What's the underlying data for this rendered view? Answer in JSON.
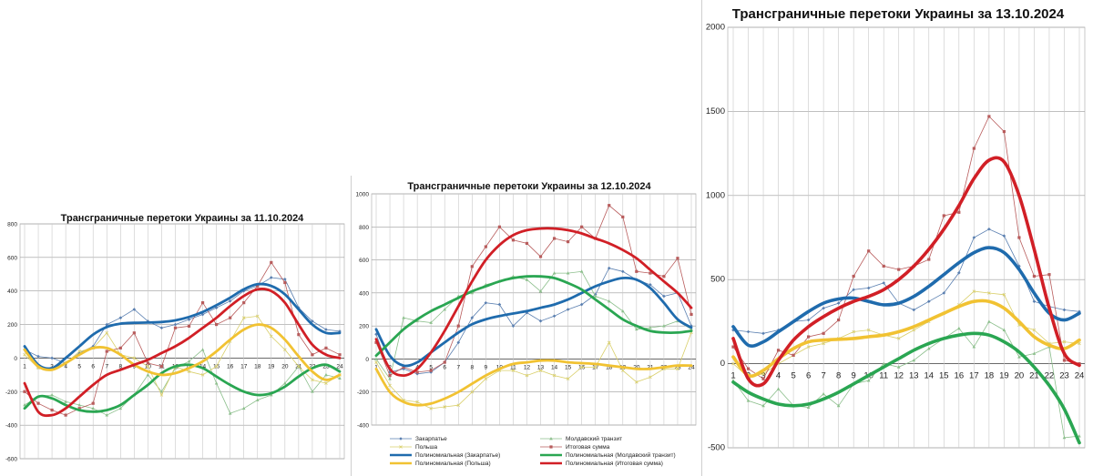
{
  "chart_data": [
    {
      "type": "line",
      "title": "Трансграничные перетоки Украины за 11.10.2024",
      "categories": [
        "1",
        "2",
        "3",
        "4",
        "5",
        "6",
        "7",
        "8",
        "9",
        "10",
        "11",
        "12",
        "13",
        "14",
        "15",
        "16",
        "17",
        "18",
        "19",
        "20",
        "21",
        "22",
        "23",
        "24"
      ],
      "ylim": [
        -600,
        800
      ],
      "yticks": [
        "800",
        "600",
        "400",
        "200",
        "0",
        "-200",
        "-400",
        "-600"
      ],
      "grid": true,
      "series": [
        {
          "color": "#5a7fb0",
          "values": [
            50,
            10,
            0,
            -30,
            30,
            70,
            200,
            240,
            290,
            220,
            180,
            200,
            230,
            260,
            300,
            340,
            400,
            430,
            480,
            470,
            300,
            220,
            170,
            160
          ]
        },
        {
          "color": "#8cbf8c",
          "values": [
            -280,
            -230,
            -220,
            -260,
            -280,
            -300,
            -340,
            -300,
            -220,
            -100,
            -200,
            -60,
            -20,
            50,
            -150,
            -330,
            -300,
            -250,
            -220,
            -150,
            -50,
            -200,
            -100,
            -120
          ]
        },
        {
          "color": "#d9cf6a",
          "values": [
            20,
            -60,
            -60,
            -30,
            40,
            60,
            150,
            20,
            0,
            -50,
            -220,
            -50,
            -80,
            -100,
            -50,
            100,
            240,
            250,
            130,
            50,
            -50,
            -130,
            -150,
            -100
          ]
        },
        {
          "color": "#b85c5c",
          "values": [
            -200,
            -270,
            -310,
            -340,
            -300,
            -270,
            40,
            60,
            150,
            -30,
            -50,
            180,
            190,
            330,
            200,
            240,
            330,
            430,
            570,
            450,
            140,
            20,
            60,
            20
          ]
        },
        {
          "color": "#1f6bad",
          "trend": true,
          "values": [
            70,
            -40,
            -60,
            0,
            70,
            140,
            185,
            205,
            210,
            212,
            215,
            225,
            245,
            275,
            315,
            360,
            410,
            440,
            430,
            380,
            290,
            200,
            150,
            150
          ]
        },
        {
          "color": "#2aa652",
          "trend": true,
          "values": [
            -300,
            -230,
            -240,
            -280,
            -310,
            -320,
            -310,
            -280,
            -220,
            -160,
            -90,
            -50,
            -40,
            -60,
            -110,
            -160,
            -200,
            -220,
            -210,
            -170,
            -110,
            -60,
            -40,
            -80
          ]
        },
        {
          "color": "#f1c232",
          "trend": true,
          "values": [
            50,
            -50,
            -70,
            -30,
            20,
            60,
            60,
            20,
            -40,
            -80,
            -100,
            -90,
            -60,
            -20,
            40,
            110,
            170,
            200,
            180,
            110,
            10,
            -80,
            -130,
            -100
          ]
        },
        {
          "color": "#d11f26",
          "trend": true,
          "values": [
            -150,
            -320,
            -340,
            -300,
            -230,
            -160,
            -100,
            -70,
            -40,
            -10,
            30,
            70,
            120,
            180,
            240,
            310,
            370,
            410,
            400,
            330,
            200,
            80,
            20,
            0
          ]
        }
      ]
    },
    {
      "type": "line",
      "title": "Трансграничные перетоки Украины за 12.10.2024",
      "categories": [
        "1",
        "2",
        "3",
        "4",
        "5",
        "6",
        "7",
        "8",
        "9",
        "10",
        "11",
        "12",
        "13",
        "14",
        "15",
        "16",
        "17",
        "18",
        "19",
        "20",
        "21",
        "22",
        "23",
        "24"
      ],
      "ylim": [
        -400,
        1000
      ],
      "yticks": [
        "1000",
        "800",
        "600",
        "400",
        "200",
        "0",
        "-200",
        "-400"
      ],
      "grid": true,
      "legend_position": "bottom",
      "series": [
        {
          "name": "Закарпатье",
          "color": "#5a7fb0",
          "values": [
            150,
            -80,
            -60,
            -90,
            -80,
            -20,
            100,
            250,
            340,
            330,
            200,
            280,
            230,
            260,
            300,
            330,
            390,
            550,
            530,
            480,
            450,
            380,
            400,
            200
          ]
        },
        {
          "name": "Молдавский транзит",
          "color": "#8cbf8c",
          "values": [
            0,
            -120,
            250,
            230,
            220,
            300,
            380,
            400,
            450,
            470,
            500,
            480,
            410,
            520,
            520,
            530,
            380,
            350,
            290,
            180,
            190,
            200,
            230,
            180
          ]
        },
        {
          "name": "Польша",
          "color": "#d9cf6a",
          "values": [
            -20,
            -160,
            -250,
            -260,
            -300,
            -290,
            -280,
            -200,
            -120,
            -70,
            -70,
            -100,
            -70,
            -100,
            -120,
            -50,
            -50,
            100,
            -70,
            -140,
            -110,
            -60,
            -60,
            160
          ]
        },
        {
          "name": "Итоговая сумма",
          "color": "#b85c5c",
          "values": [
            100,
            -100,
            -50,
            -80,
            -70,
            -20,
            200,
            560,
            680,
            800,
            720,
            700,
            620,
            730,
            710,
            800,
            730,
            930,
            860,
            530,
            520,
            500,
            610,
            270
          ]
        },
        {
          "name": "Полиномиальная (Закарпатье)",
          "color": "#1f6bad",
          "trend": true,
          "values": [
            180,
            20,
            -40,
            -20,
            40,
            100,
            160,
            210,
            240,
            260,
            275,
            290,
            310,
            330,
            360,
            400,
            440,
            470,
            490,
            480,
            430,
            340,
            240,
            190
          ]
        },
        {
          "name": "Полиномиальная (Молдавский транзит)",
          "color": "#2aa652",
          "trend": true,
          "values": [
            20,
            100,
            180,
            240,
            290,
            330,
            370,
            410,
            440,
            470,
            490,
            500,
            500,
            490,
            460,
            420,
            360,
            300,
            240,
            200,
            170,
            160,
            160,
            170
          ]
        },
        {
          "name": "Полиномиальная (Польша)",
          "color": "#f1c232",
          "trend": true,
          "values": [
            -60,
            -200,
            -260,
            -280,
            -270,
            -240,
            -200,
            -150,
            -100,
            -60,
            -30,
            -20,
            -10,
            -10,
            -20,
            -25,
            -30,
            -40,
            -50,
            -60,
            -60,
            -50,
            -40,
            -40
          ]
        },
        {
          "name": "Полиномиальная (Итоговая сумма)",
          "color": "#d11f26",
          "trend": true,
          "values": [
            120,
            -60,
            -100,
            -60,
            40,
            170,
            320,
            470,
            600,
            690,
            750,
            780,
            790,
            790,
            780,
            760,
            730,
            700,
            660,
            610,
            540,
            470,
            400,
            310
          ]
        }
      ]
    },
    {
      "type": "line",
      "title": "Трансграничные перетоки Украины за 13.10.2024",
      "categories": [
        "1",
        "2",
        "3",
        "4",
        "5",
        "6",
        "7",
        "8",
        "9",
        "10",
        "11",
        "12",
        "13",
        "14",
        "15",
        "16",
        "17",
        "18",
        "19",
        "20",
        "21",
        "22",
        "23",
        "24"
      ],
      "ylim": [
        -500,
        2000
      ],
      "yticks": [
        "2000",
        "1500",
        "1000",
        "500",
        "0",
        "-500"
      ],
      "grid": true,
      "series": [
        {
          "color": "#5a7fb0",
          "values": [
            200,
            190,
            180,
            200,
            250,
            260,
            330,
            360,
            440,
            450,
            480,
            360,
            320,
            370,
            420,
            540,
            750,
            800,
            760,
            580,
            370,
            340,
            320,
            310
          ]
        },
        {
          "color": "#8cbf8c",
          "values": [
            -100,
            -220,
            -250,
            -150,
            -250,
            -260,
            -180,
            -250,
            -120,
            -100,
            0,
            -20,
            20,
            90,
            150,
            210,
            100,
            250,
            200,
            40,
            60,
            100,
            -440,
            -430
          ]
        },
        {
          "color": "#d9cf6a",
          "values": [
            0,
            -80,
            -60,
            0,
            50,
            100,
            120,
            150,
            190,
            200,
            170,
            150,
            200,
            250,
            300,
            350,
            430,
            420,
            410,
            230,
            200,
            120,
            130,
            120
          ]
        },
        {
          "color": "#b85c5c",
          "values": [
            100,
            -30,
            -90,
            80,
            50,
            160,
            180,
            260,
            520,
            670,
            580,
            560,
            580,
            620,
            880,
            900,
            1280,
            1470,
            1380,
            750,
            520,
            530,
            20,
            0
          ]
        },
        {
          "color": "#1f6bad",
          "trend": true,
          "values": [
            220,
            110,
            130,
            190,
            250,
            310,
            360,
            385,
            390,
            370,
            350,
            360,
            400,
            460,
            530,
            600,
            660,
            690,
            660,
            560,
            420,
            300,
            260,
            300
          ]
        },
        {
          "color": "#2aa652",
          "trend": true,
          "values": [
            -110,
            -170,
            -210,
            -240,
            -250,
            -240,
            -210,
            -170,
            -120,
            -70,
            -20,
            30,
            80,
            120,
            150,
            170,
            180,
            170,
            130,
            70,
            -20,
            -130,
            -270,
            -470
          ]
        },
        {
          "color": "#f1c232",
          "trend": true,
          "values": [
            40,
            -70,
            -40,
            30,
            90,
            130,
            140,
            145,
            150,
            160,
            170,
            190,
            220,
            260,
            300,
            340,
            370,
            370,
            330,
            250,
            160,
            110,
            90,
            140
          ]
        },
        {
          "color": "#d11f26",
          "trend": true,
          "values": [
            150,
            -90,
            -120,
            20,
            140,
            220,
            280,
            330,
            370,
            400,
            440,
            500,
            580,
            680,
            800,
            940,
            1100,
            1210,
            1200,
            1000,
            680,
            330,
            60,
            -10
          ]
        }
      ]
    }
  ]
}
